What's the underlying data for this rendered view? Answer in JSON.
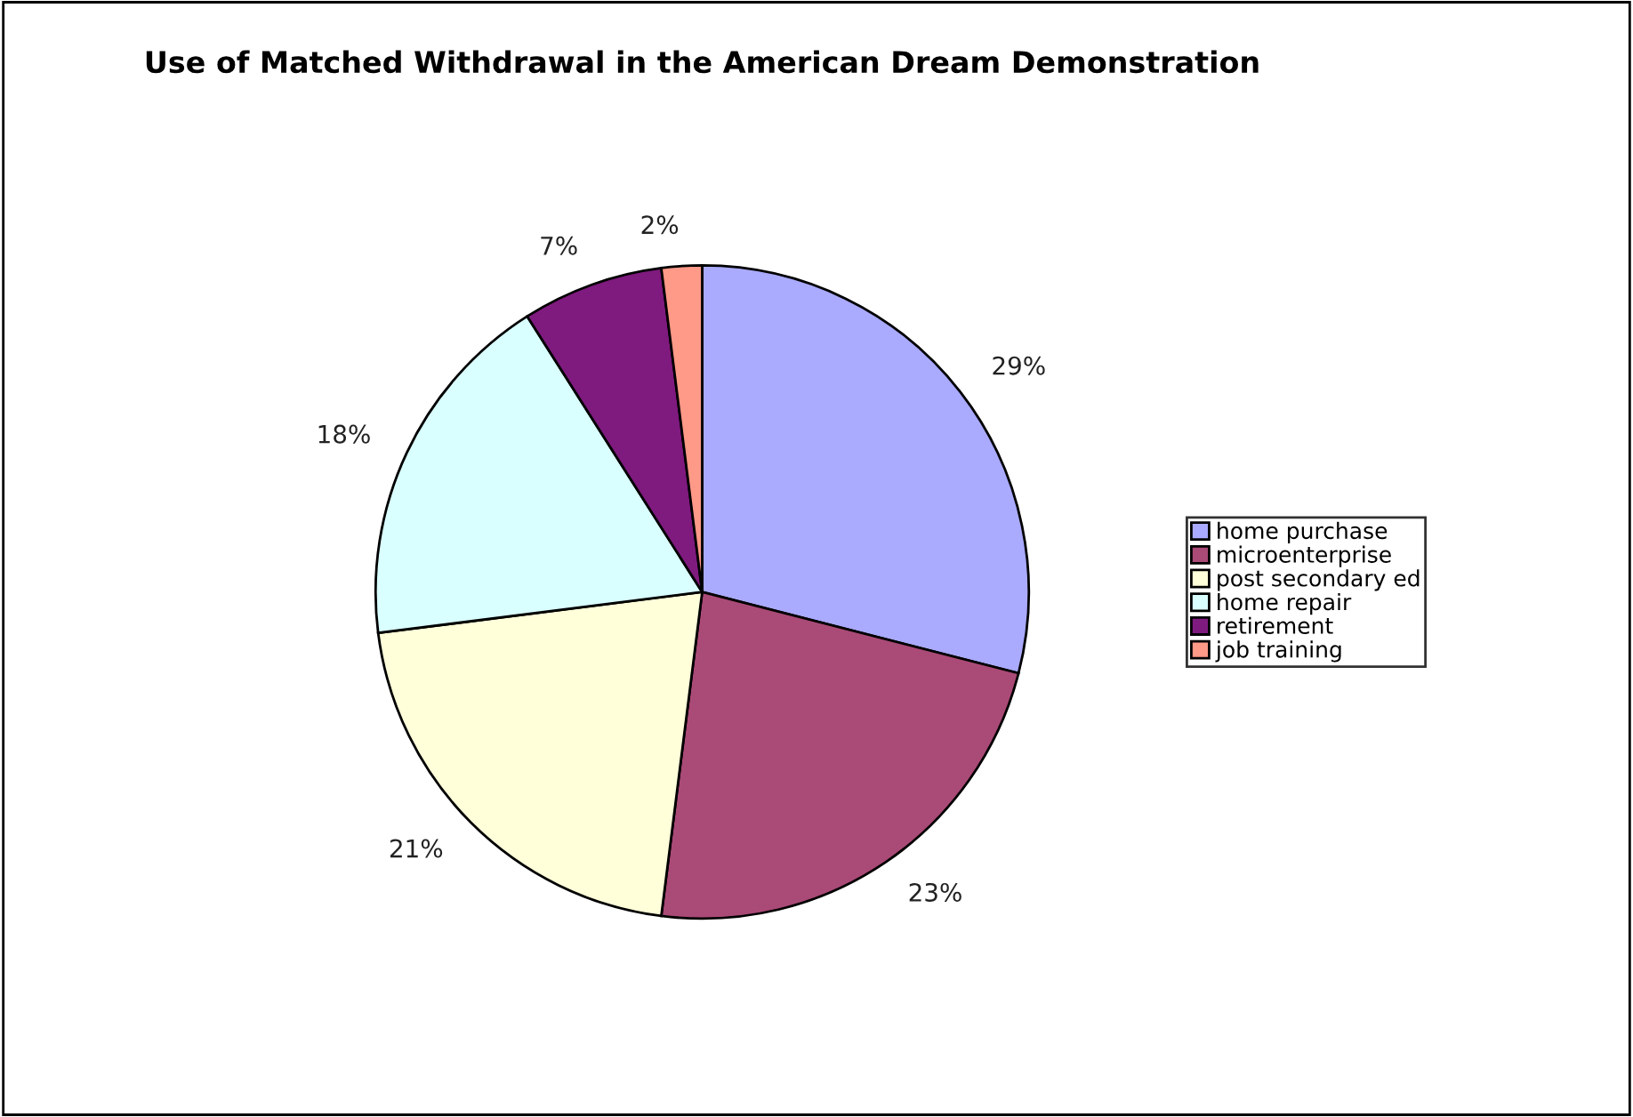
{
  "chart_data": {
    "type": "pie",
    "title": "Use of Matched Withdrawal in the American Dream Demonstration",
    "categories": [
      "home purchase",
      "microenterprise",
      "post secondary ed",
      "home repair",
      "retirement",
      "job training"
    ],
    "values": [
      29,
      23,
      21,
      18,
      7,
      2
    ],
    "colors": [
      "#aaaaff",
      "#aa4a77",
      "#ffffd9",
      "#d9ffff",
      "#7f1a7f",
      "#ff9988"
    ],
    "value_labels": [
      "29%",
      "23%",
      "21%",
      "18%",
      "7%",
      "2%"
    ],
    "legend": "right"
  }
}
